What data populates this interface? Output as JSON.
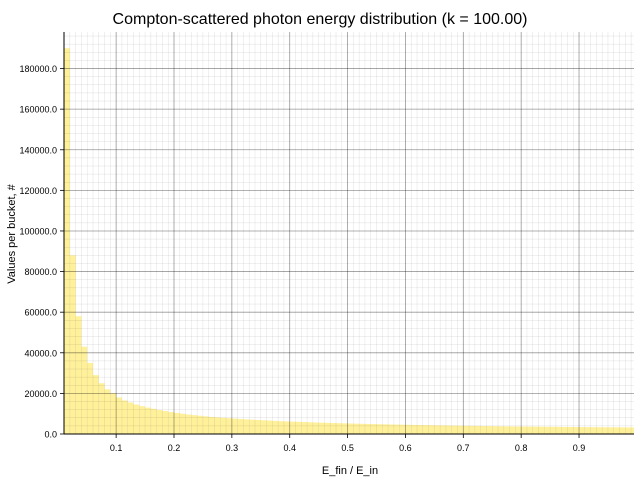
{
  "chart_data": {
    "type": "bar",
    "title": "Compton-scattered photon energy distribution (k = 100.00)",
    "xlabel": "E_fin / E_in",
    "ylabel": "Values per bucket, #",
    "xlim": [
      0.0099,
      0.995
    ],
    "ylim": [
      0,
      198000
    ],
    "grid": true,
    "minor_grid": true,
    "bar_color": "#fff09a",
    "bar_edge_color": "#ffe680",
    "x_ticks": [
      0.1,
      0.2,
      0.3,
      0.4,
      0.5,
      0.6,
      0.7,
      0.8,
      0.9
    ],
    "x_tick_labels": [
      "0.1",
      "0.2",
      "0.3",
      "0.4",
      "0.5",
      "0.6",
      "0.7",
      "0.8",
      "0.9"
    ],
    "y_ticks": [
      0,
      20000,
      40000,
      60000,
      80000,
      100000,
      120000,
      140000,
      160000,
      180000
    ],
    "y_tick_labels": [
      "0.0",
      "20000.0",
      "40000.0",
      "60000.0",
      "80000.0",
      "100000.0",
      "120000.0",
      "140000.0",
      "160000.0",
      "180000.0"
    ],
    "bin_width": 0.01,
    "bin_start": 0.01,
    "values": [
      190000,
      88000,
      58000,
      43000,
      35000,
      29000,
      25000,
      22000,
      20000,
      18000,
      16500,
      15500,
      14500,
      13700,
      13000,
      12400,
      11800,
      11300,
      10800,
      10400,
      10000,
      9600,
      9300,
      9000,
      8700,
      8400,
      8200,
      8000,
      7800,
      7600,
      7400,
      7200,
      7050,
      6900,
      6750,
      6600,
      6450,
      6300,
      6200,
      6100,
      6000,
      5900,
      5800,
      5700,
      5600,
      5500,
      5420,
      5340,
      5260,
      5180,
      5100,
      5030,
      4960,
      4890,
      4820,
      4760,
      4700,
      4640,
      4580,
      4520,
      4460,
      4410,
      4360,
      4310,
      4260,
      4210,
      4160,
      4120,
      4080,
      4040,
      4000,
      3960,
      3920,
      3880,
      3840,
      3800,
      3770,
      3740,
      3710,
      3680,
      3650,
      3620,
      3590,
      3560,
      3530,
      3500,
      3475,
      3450,
      3425,
      3400,
      3380,
      3360,
      3340,
      3320,
      3300,
      3280,
      3260,
      3240,
      3220
    ]
  }
}
